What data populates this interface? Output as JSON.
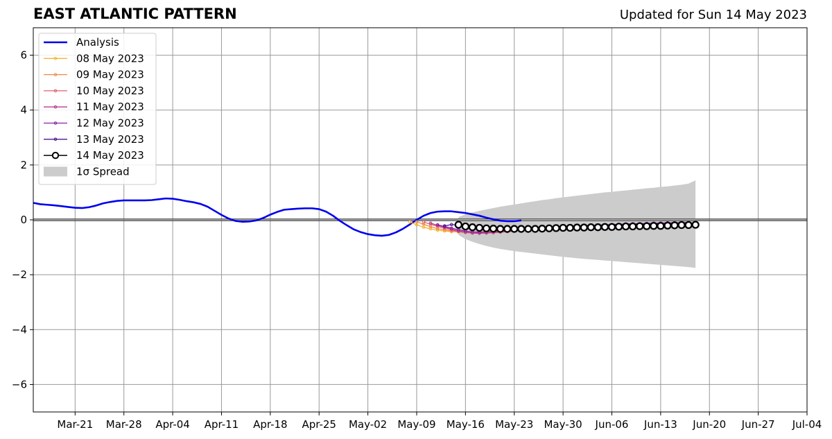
{
  "title": "EAST ATLANTIC PATTERN",
  "updated": "Updated for Sun 14 May 2023",
  "chart_data": {
    "type": "line",
    "x_tick_labels": [
      "Mar-21",
      "Mar-28",
      "Apr-04",
      "Apr-11",
      "Apr-18",
      "Apr-25",
      "May-02",
      "May-09",
      "May-16",
      "May-23",
      "May-30",
      "Jun-06",
      "Jun-13",
      "Jun-20",
      "Jun-27",
      "Jul-04"
    ],
    "x_tick_dates": [
      "2023-03-21",
      "2023-03-28",
      "2023-04-04",
      "2023-04-11",
      "2023-04-18",
      "2023-04-25",
      "2023-05-02",
      "2023-05-09",
      "2023-05-16",
      "2023-05-23",
      "2023-05-30",
      "2023-06-06",
      "2023-06-13",
      "2023-06-20",
      "2023-06-27",
      "2023-07-04"
    ],
    "xlim": [
      "2023-03-15",
      "2023-07-04"
    ],
    "ylim": [
      -7,
      7
    ],
    "y_ticks": [
      -6,
      -4,
      -2,
      0,
      2,
      4,
      6
    ],
    "y_tick_labels": [
      "−6",
      "−4",
      "−2",
      "0",
      "2",
      "4",
      "6"
    ],
    "grid": true,
    "zero_line": true,
    "legend_position": "upper-left",
    "legend": [
      "Analysis",
      "08 May 2023",
      "09 May 2023",
      "10 May 2023",
      "11 May 2023",
      "12 May 2023",
      "13 May 2023",
      "14 May 2023",
      "1σ Spread"
    ],
    "analysis": {
      "name": "Analysis",
      "color": "#0000ee",
      "start": "2023-03-15",
      "values": [
        0.62,
        0.57,
        0.55,
        0.53,
        0.5,
        0.47,
        0.44,
        0.43,
        0.46,
        0.52,
        0.6,
        0.65,
        0.69,
        0.71,
        0.71,
        0.71,
        0.71,
        0.72,
        0.75,
        0.78,
        0.77,
        0.73,
        0.68,
        0.64,
        0.58,
        0.48,
        0.33,
        0.18,
        0.05,
        -0.04,
        -0.07,
        -0.06,
        -0.02,
        0.07,
        0.19,
        0.29,
        0.37,
        0.39,
        0.41,
        0.42,
        0.42,
        0.39,
        0.3,
        0.15,
        -0.04,
        -0.2,
        -0.35,
        -0.45,
        -0.52,
        -0.56,
        -0.58,
        -0.55,
        -0.46,
        -0.33,
        -0.17,
        0.0,
        0.15,
        0.25,
        0.3,
        0.31,
        0.31,
        0.28,
        0.25,
        0.2,
        0.15,
        0.08,
        0.02,
        -0.03,
        -0.05,
        -0.05,
        -0.02
      ]
    },
    "forecasts": [
      {
        "name": "08 May 2023",
        "color": "#f5b62f",
        "start": "2023-05-08",
        "values": [
          -0.08,
          -0.18,
          -0.27,
          -0.33,
          -0.38,
          -0.41,
          -0.43,
          -0.44,
          -0.45,
          -0.45,
          -0.44,
          -0.43,
          -0.42,
          -0.41,
          -0.4,
          -0.38,
          -0.37,
          -0.35,
          -0.34,
          -0.33,
          -0.31,
          -0.3,
          -0.29,
          -0.27,
          -0.26,
          -0.25,
          -0.23,
          -0.22,
          -0.21,
          -0.2,
          -0.18,
          -0.17,
          -0.16,
          -0.15,
          -0.14,
          -0.13,
          -0.12
        ]
      },
      {
        "name": "09 May 2023",
        "color": "#f08a45",
        "start": "2023-05-09",
        "values": [
          -0.07,
          -0.16,
          -0.25,
          -0.32,
          -0.37,
          -0.41,
          -0.44,
          -0.46,
          -0.47,
          -0.47,
          -0.46,
          -0.45,
          -0.44,
          -0.42,
          -0.41,
          -0.39,
          -0.37,
          -0.36,
          -0.34,
          -0.33,
          -0.31,
          -0.3,
          -0.28,
          -0.27,
          -0.26,
          -0.24,
          -0.23,
          -0.22,
          -0.21,
          -0.19,
          -0.18,
          -0.17,
          -0.16,
          -0.15,
          -0.14,
          -0.13,
          -0.12
        ]
      },
      {
        "name": "10 May 2023",
        "color": "#e0606a",
        "start": "2023-05-10",
        "values": [
          -0.08,
          -0.16,
          -0.24,
          -0.31,
          -0.37,
          -0.42,
          -0.46,
          -0.48,
          -0.49,
          -0.48,
          -0.47,
          -0.45,
          -0.43,
          -0.41,
          -0.39,
          -0.37,
          -0.35,
          -0.33,
          -0.32,
          -0.3,
          -0.29,
          -0.27,
          -0.26,
          -0.25,
          -0.23,
          -0.22,
          -0.21,
          -0.2,
          -0.19,
          -0.18,
          -0.17,
          -0.16,
          -0.15,
          -0.14,
          -0.13,
          -0.12,
          -0.11
        ]
      },
      {
        "name": "11 May 2023",
        "color": "#b83a8c",
        "start": "2023-05-11",
        "values": [
          -0.12,
          -0.2,
          -0.27,
          -0.34,
          -0.4,
          -0.45,
          -0.48,
          -0.49,
          -0.48,
          -0.46,
          -0.44,
          -0.42,
          -0.4,
          -0.38,
          -0.36,
          -0.34,
          -0.32,
          -0.3,
          -0.29,
          -0.27,
          -0.26,
          -0.24,
          -0.23,
          -0.22,
          -0.21,
          -0.2,
          -0.19,
          -0.18,
          -0.17,
          -0.16,
          -0.15,
          -0.14,
          -0.13,
          -0.12,
          -0.11,
          -0.11,
          -0.1
        ]
      },
      {
        "name": "12 May 2023",
        "color": "#8a1fa6",
        "start": "2023-05-12",
        "values": [
          -0.18,
          -0.24,
          -0.3,
          -0.36,
          -0.41,
          -0.44,
          -0.45,
          -0.44,
          -0.42,
          -0.4,
          -0.38,
          -0.36,
          -0.34,
          -0.32,
          -0.3,
          -0.29,
          -0.27,
          -0.26,
          -0.25,
          -0.23,
          -0.22,
          -0.21,
          -0.2,
          -0.19,
          -0.18,
          -0.17,
          -0.16,
          -0.15,
          -0.14,
          -0.14,
          -0.13,
          -0.12,
          -0.12,
          -0.11,
          -0.11,
          -0.1,
          -0.1
        ]
      },
      {
        "name": "13 May 2023",
        "color": "#4b1290",
        "start": "2023-05-13",
        "values": [
          -0.22,
          -0.17,
          -0.2,
          -0.27,
          -0.32,
          -0.35,
          -0.36,
          -0.35,
          -0.34,
          -0.33,
          -0.32,
          -0.31,
          -0.3,
          -0.29,
          -0.28,
          -0.27,
          -0.26,
          -0.25,
          -0.24,
          -0.23,
          -0.22,
          -0.21,
          -0.2,
          -0.2,
          -0.19,
          -0.18,
          -0.17,
          -0.17,
          -0.16,
          -0.15,
          -0.15,
          -0.14,
          -0.14,
          -0.13,
          -0.13,
          -0.12,
          -0.12
        ]
      }
    ],
    "latest": {
      "name": "14 May 2023",
      "color": "#000000",
      "start": "2023-05-15",
      "values": [
        -0.18,
        -0.24,
        -0.27,
        -0.29,
        -0.31,
        -0.32,
        -0.33,
        -0.33,
        -0.33,
        -0.33,
        -0.33,
        -0.33,
        -0.32,
        -0.31,
        -0.3,
        -0.29,
        -0.29,
        -0.28,
        -0.28,
        -0.27,
        -0.27,
        -0.26,
        -0.26,
        -0.25,
        -0.24,
        -0.24,
        -0.23,
        -0.23,
        -0.22,
        -0.22,
        -0.21,
        -0.2,
        -0.19,
        -0.19,
        -0.18
      ]
    },
    "spread": {
      "name": "1σ Spread",
      "color": "#cccccc",
      "start": "2023-05-15",
      "upper": [
        0.1,
        0.2,
        0.27,
        0.33,
        0.38,
        0.43,
        0.48,
        0.52,
        0.56,
        0.6,
        0.64,
        0.68,
        0.72,
        0.75,
        0.79,
        0.82,
        0.85,
        0.88,
        0.91,
        0.94,
        0.97,
        1.0,
        1.02,
        1.05,
        1.07,
        1.1,
        1.12,
        1.15,
        1.17,
        1.2,
        1.22,
        1.25,
        1.28,
        1.32,
        1.44
      ],
      "lower": [
        -0.55,
        -0.7,
        -0.8,
        -0.88,
        -0.95,
        -1.01,
        -1.06,
        -1.1,
        -1.14,
        -1.17,
        -1.2,
        -1.23,
        -1.26,
        -1.29,
        -1.32,
        -1.35,
        -1.37,
        -1.4,
        -1.42,
        -1.44,
        -1.46,
        -1.48,
        -1.5,
        -1.52,
        -1.54,
        -1.56,
        -1.58,
        -1.6,
        -1.62,
        -1.64,
        -1.66,
        -1.68,
        -1.7,
        -1.72,
        -1.75
      ]
    }
  }
}
